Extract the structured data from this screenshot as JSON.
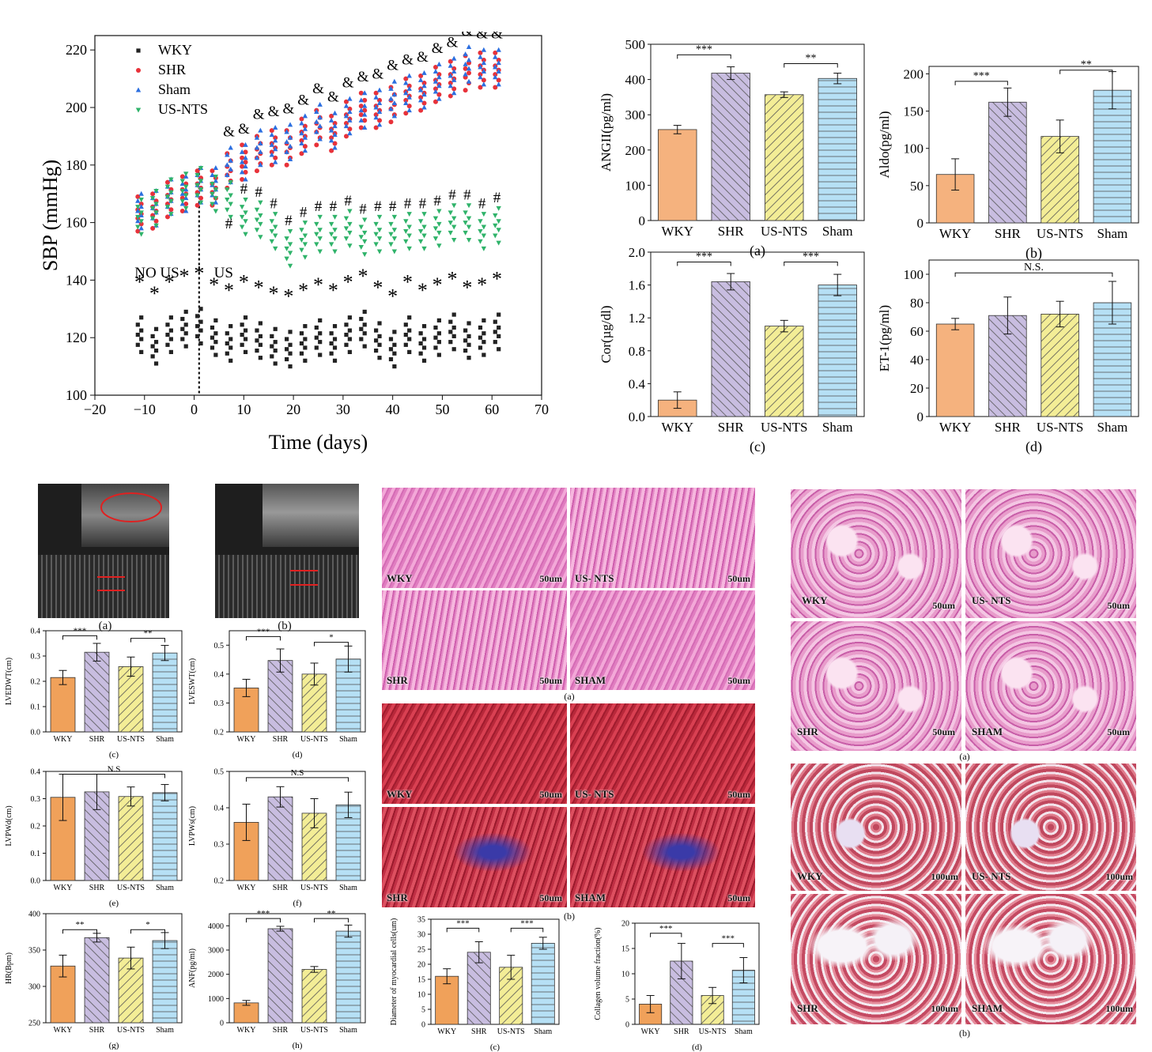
{
  "colors": {
    "wky": "#f5b27e",
    "shr": "#c8bde0",
    "usnts": "#f3ed96",
    "sham": "#b6e0f5",
    "wky_dark": "#f0a15a",
    "sbp_wky": "#222222",
    "sbp_shr": "#e8323a",
    "sbp_sham": "#2c6fe0",
    "sbp_usnts": "#2fb36a"
  },
  "chart_data": [
    {
      "id": "sbp",
      "type": "scatter",
      "title": "",
      "xlabel": "Time (days)",
      "ylabel": "SBP (mmHg)",
      "xlim": [
        -20,
        70
      ],
      "ylim": [
        100,
        225
      ],
      "xticks": [
        -20,
        -10,
        0,
        10,
        20,
        30,
        40,
        50,
        60,
        70
      ],
      "yticks": [
        100,
        120,
        140,
        160,
        180,
        200,
        220
      ],
      "legend": [
        "WKY",
        "SHR",
        "Sham",
        "US-NTS"
      ],
      "annotations": {
        "no_us": "NO US",
        "us": "US",
        "amp": "&",
        "hash": "#",
        "star": "*"
      },
      "divider_x": 1,
      "days": [
        -11,
        -8,
        -5,
        -2,
        1,
        4,
        7,
        10,
        13,
        16,
        19,
        22,
        25,
        28,
        31,
        34,
        37,
        40,
        43,
        46,
        49,
        52,
        55,
        58,
        61
      ],
      "series": [
        {
          "name": "WKY",
          "marker": "square",
          "means": [
            121,
            117,
            121,
            123,
            124,
            120,
            118,
            121,
            119,
            117,
            116,
            118,
            120,
            118,
            121,
            123,
            119,
            116,
            121,
            118,
            120,
            122,
            119,
            120,
            122
          ]
        },
        {
          "name": "SHR",
          "marker": "circle",
          "means": [
            163,
            164,
            168,
            170,
            172,
            172,
            178,
            181,
            184,
            186,
            186,
            190,
            193,
            191,
            196,
            199,
            199,
            201,
            204,
            205,
            208,
            210,
            212,
            213,
            213
          ]
        },
        {
          "name": "Sham",
          "marker": "triangle-up",
          "means": [
            164,
            165,
            169,
            170,
            173,
            173,
            180,
            181,
            186,
            187,
            188,
            191,
            195,
            192,
            197,
            199,
            200,
            203,
            205,
            206,
            209,
            211,
            215,
            214,
            214
          ]
        },
        {
          "name": "US-NTS",
          "marker": "triangle-down",
          "means": [
            162,
            165,
            169,
            171,
            173,
            170,
            168,
            162,
            161,
            157,
            151,
            154,
            156,
            156,
            158,
            155,
            156,
            156,
            157,
            157,
            158,
            160,
            160,
            157,
            159
          ]
        }
      ],
      "amp_days": [
        7,
        10,
        13,
        16,
        19,
        22,
        25,
        28,
        31,
        34,
        37,
        40,
        43,
        46,
        49,
        52,
        55,
        58,
        61
      ],
      "hash_days": [
        7,
        10,
        13,
        16,
        19,
        22,
        25,
        28,
        31,
        34,
        37,
        40,
        43,
        46,
        49,
        52,
        55,
        58,
        61
      ],
      "star_days": [
        -11,
        -8,
        -5,
        -2,
        1,
        4,
        7,
        10,
        13,
        16,
        19,
        22,
        25,
        28,
        31,
        34,
        37,
        40,
        43,
        46,
        49,
        52,
        55,
        58,
        61
      ]
    },
    {
      "id": "angii",
      "type": "bar",
      "ylabel": "ANGII(pg/ml)",
      "caption": "(a)",
      "categories": [
        "WKY",
        "SHR",
        "US-NTS",
        "Sham"
      ],
      "values": [
        258,
        418,
        357,
        403
      ],
      "errors": [
        12,
        18,
        8,
        15
      ],
      "ylim": [
        0,
        500
      ],
      "yticks": [
        0,
        100,
        200,
        300,
        400,
        500
      ],
      "sig": [
        {
          "from": 0,
          "to": 1,
          "label": "***",
          "y": 470
        },
        {
          "from": 2,
          "to": 3,
          "label": "**",
          "y": 445
        }
      ]
    },
    {
      "id": "aldo",
      "type": "bar",
      "ylabel": "Aldo(pg/ml)",
      "caption": "(b)",
      "categories": [
        "WKY",
        "SHR",
        "US-NTS",
        "Sham"
      ],
      "values": [
        65,
        162,
        116,
        178
      ],
      "errors": [
        21,
        19,
        22,
        25
      ],
      "ylim": [
        0,
        210
      ],
      "yticks": [
        0,
        50,
        100,
        150,
        200
      ],
      "sig": [
        {
          "from": 0,
          "to": 1,
          "label": "***",
          "y": 190
        },
        {
          "from": 2,
          "to": 3,
          "label": "**",
          "y": 205
        }
      ]
    },
    {
      "id": "cor",
      "type": "bar",
      "ylabel": "Cor(µg/dl)",
      "caption": "(c)",
      "categories": [
        "WKY",
        "SHR",
        "US-NTS",
        "Sham"
      ],
      "values": [
        0.2,
        1.64,
        1.1,
        1.6
      ],
      "errors": [
        0.1,
        0.1,
        0.07,
        0.13
      ],
      "ylim": [
        0,
        2.0
      ],
      "yticks": [
        0.0,
        0.4,
        0.8,
        1.2,
        1.6,
        2.0
      ],
      "decimals": 1,
      "sig": [
        {
          "from": 0,
          "to": 1,
          "label": "***",
          "y": 1.88
        },
        {
          "from": 2,
          "to": 3,
          "label": "***",
          "y": 1.88
        }
      ]
    },
    {
      "id": "et1",
      "type": "bar",
      "ylabel": "ET-1(pg/ml)",
      "caption": "(d)",
      "categories": [
        "WKY",
        "SHR",
        "US-NTS",
        "Sham"
      ],
      "values": [
        65,
        71,
        72,
        80
      ],
      "errors": [
        4,
        13,
        9,
        15
      ],
      "ylim": [
        0,
        110
      ],
      "yticks": [
        0,
        20,
        40,
        60,
        80,
        100
      ],
      "sig": [
        {
          "from": 0,
          "to": 3,
          "label": "N.S.",
          "y": 101
        }
      ]
    },
    {
      "id": "lvedwt",
      "type": "bar",
      "ylabel": "LVEDWT(cm)",
      "caption": "(c)",
      "categories": [
        "WKY",
        "SHR",
        "US-NTS",
        "Sham"
      ],
      "values": [
        0.215,
        0.315,
        0.258,
        0.312
      ],
      "errors": [
        0.028,
        0.035,
        0.038,
        0.03
      ],
      "ylim": [
        0,
        0.4
      ],
      "yticks": [
        0.0,
        0.1,
        0.2,
        0.3,
        0.4
      ],
      "decimals": 1,
      "sig": [
        {
          "from": 0,
          "to": 1,
          "label": "***",
          "y": 0.38
        },
        {
          "from": 2,
          "to": 3,
          "label": "**",
          "y": 0.37
        }
      ]
    },
    {
      "id": "lveswt",
      "type": "bar",
      "ylabel": "LVESWT(cm)",
      "caption": "(d)",
      "categories": [
        "WKY",
        "SHR",
        "US-NTS",
        "Sham"
      ],
      "values": [
        0.352,
        0.447,
        0.4,
        0.452
      ],
      "errors": [
        0.03,
        0.04,
        0.038,
        0.045
      ],
      "ylim": [
        0.2,
        0.55
      ],
      "yticks": [
        0.2,
        0.3,
        0.4,
        0.5
      ],
      "decimals": 1,
      "sig": [
        {
          "from": 0,
          "to": 1,
          "label": "***",
          "y": 0.53
        },
        {
          "from": 2,
          "to": 3,
          "label": "*",
          "y": 0.51
        }
      ]
    },
    {
      "id": "lvpwd",
      "type": "bar",
      "ylabel": "LVPWd(cm)",
      "caption": "(e)",
      "categories": [
        "WKY",
        "SHR",
        "US-NTS",
        "Sham"
      ],
      "values": [
        0.305,
        0.325,
        0.308,
        0.322
      ],
      "errors": [
        0.085,
        0.065,
        0.035,
        0.03
      ],
      "ylim": [
        0,
        0.4
      ],
      "yticks": [
        0.0,
        0.1,
        0.2,
        0.3,
        0.4
      ],
      "decimals": 1,
      "sig": [
        {
          "from": 0,
          "to": 3,
          "label": "N.S",
          "y": 0.39
        }
      ]
    },
    {
      "id": "lvpws",
      "type": "bar",
      "ylabel": "LVPWs(cm)",
      "caption": "(f)",
      "categories": [
        "WKY",
        "SHR",
        "US-NTS",
        "Sham"
      ],
      "values": [
        0.36,
        0.43,
        0.385,
        0.408
      ],
      "errors": [
        0.05,
        0.028,
        0.04,
        0.035
      ],
      "ylim": [
        0.2,
        0.5
      ],
      "yticks": [
        0.2,
        0.3,
        0.4,
        0.5
      ],
      "decimals": 1,
      "sig": [
        {
          "from": 0,
          "to": 3,
          "label": "N.S",
          "y": 0.483
        }
      ]
    },
    {
      "id": "hr",
      "type": "bar",
      "ylabel": "HR(Bpm)",
      "caption": "(g)",
      "categories": [
        "WKY",
        "SHR",
        "US-NTS",
        "Sham"
      ],
      "values": [
        328,
        367,
        339,
        363
      ],
      "errors": [
        15,
        6,
        15,
        11
      ],
      "ylim": [
        250,
        400
      ],
      "yticks": [
        250,
        300,
        350,
        400
      ],
      "sig": [
        {
          "from": 0,
          "to": 1,
          "label": "**",
          "y": 378
        },
        {
          "from": 2,
          "to": 3,
          "label": "*",
          "y": 378
        }
      ]
    },
    {
      "id": "anf",
      "type": "bar",
      "ylabel": "ANF(pg/ml)",
      "caption": "(h)",
      "categories": [
        "WKY",
        "SHR",
        "US-NTS",
        "Sham"
      ],
      "values": [
        820,
        3880,
        2200,
        3780
      ],
      "errors": [
        100,
        100,
        120,
        250
      ],
      "ylim": [
        0,
        4500
      ],
      "yticks": [
        0,
        1000,
        2000,
        3000,
        4000
      ],
      "sig": [
        {
          "from": 0,
          "to": 1,
          "label": "***",
          "y": 4300
        },
        {
          "from": 2,
          "to": 3,
          "label": "**",
          "y": 4300
        }
      ]
    },
    {
      "id": "myo",
      "type": "bar",
      "ylabel": "Diameter of myocardial cells(um)",
      "caption": "(c)",
      "categories": [
        "WKY",
        "SHR",
        "US-NTS",
        "Sham"
      ],
      "values": [
        16,
        24,
        19,
        27
      ],
      "errors": [
        2.5,
        3.5,
        4,
        2
      ],
      "ylim": [
        0,
        35
      ],
      "yticks": [
        0,
        5,
        10,
        15,
        20,
        25,
        30,
        35
      ],
      "sig": [
        {
          "from": 0,
          "to": 1,
          "label": "***",
          "y": 32
        },
        {
          "from": 2,
          "to": 3,
          "label": "***",
          "y": 32
        }
      ]
    },
    {
      "id": "collagen",
      "type": "bar",
      "ylabel": "Collagen volume fraction(%)",
      "caption": "(d)",
      "categories": [
        "WKY",
        "SHR",
        "US-NTS",
        "Sham"
      ],
      "values": [
        4,
        12.5,
        5.7,
        10.7
      ],
      "errors": [
        1.7,
        3.5,
        1.6,
        2.5
      ],
      "ylim": [
        0,
        20
      ],
      "yticks": [
        0,
        5,
        10,
        15,
        20
      ],
      "sig": [
        {
          "from": 0,
          "to": 1,
          "label": "***",
          "y": 18
        },
        {
          "from": 2,
          "to": 3,
          "label": "***",
          "y": 16
        }
      ]
    }
  ],
  "echo": {
    "caption_a": "(a)",
    "caption_b": "(b)"
  },
  "heart_histology": {
    "he_labels": [
      "WKY",
      "US- NTS",
      "SHR",
      "SHAM"
    ],
    "mt_labels": [
      "WKY",
      "US- NTS",
      "SHR",
      "SHAM"
    ],
    "scale": "50um",
    "caption_a": "(a)",
    "caption_b": "(b)"
  },
  "kidney_histology": {
    "he_labels": [
      "WKY",
      "US- NTS",
      "SHR",
      "SHAM"
    ],
    "mt_labels": [
      "WKY",
      "US- NTS",
      "SHR",
      "SHAM"
    ],
    "scale_he": "50um",
    "scale_mt": "100um",
    "caption_a": "(a)",
    "caption_b": "(b)"
  }
}
